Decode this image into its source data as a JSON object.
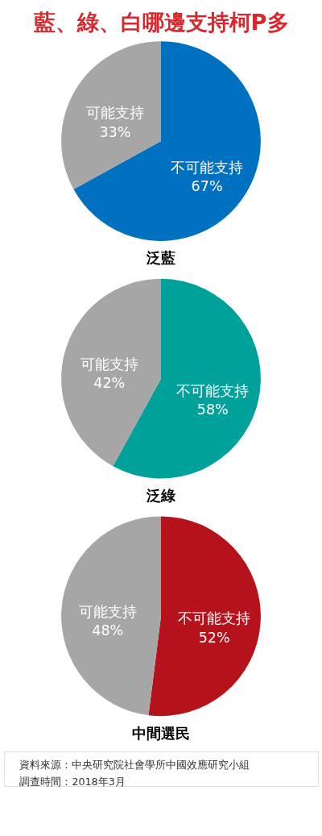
{
  "chart_data": [
    {
      "type": "pie",
      "title": "藍、綠、白哪邊支持柯P多",
      "xlabel": "泛藍",
      "categories": [
        "不可能支持",
        "可能支持"
      ],
      "values": [
        67,
        33
      ],
      "value_labels": [
        "67%",
        "33%"
      ],
      "colors": [
        "#0070c0",
        "#a6a6a6"
      ]
    },
    {
      "type": "pie",
      "xlabel": "泛綠",
      "categories": [
        "不可能支持",
        "可能支持"
      ],
      "values": [
        58,
        42
      ],
      "value_labels": [
        "58%",
        "42%"
      ],
      "colors": [
        "#00a19a",
        "#a6a6a6"
      ]
    },
    {
      "type": "pie",
      "xlabel": "中間選民",
      "categories": [
        "不可能支持",
        "可能支持"
      ],
      "values": [
        52,
        48
      ],
      "value_labels": [
        "52%",
        "48%"
      ],
      "colors": [
        "#b5121b",
        "#a6a6a6"
      ]
    },
    {
      "type": "other",
      "annotations": [
        "資料來源：中央研究院社會學所中國效應研究小組",
        "調查時間：2018年3月"
      ]
    }
  ]
}
